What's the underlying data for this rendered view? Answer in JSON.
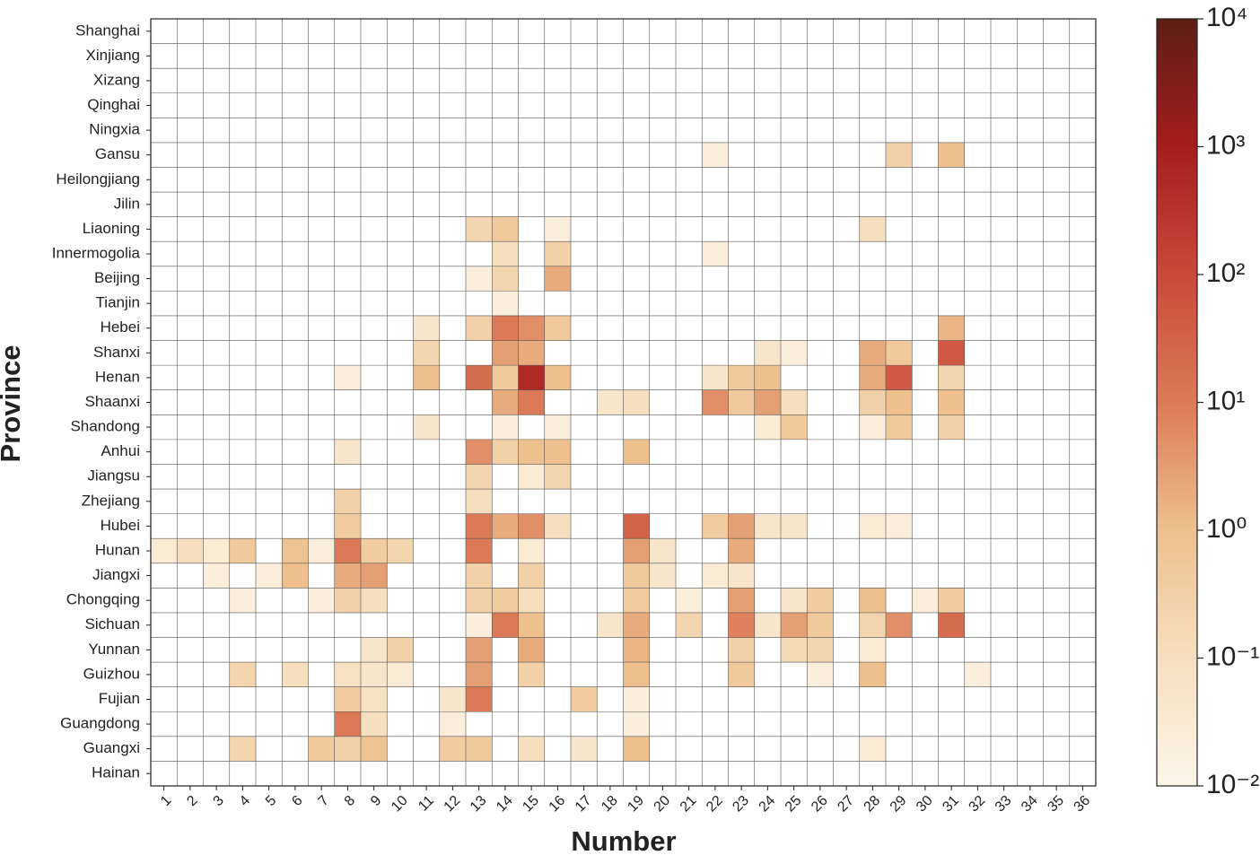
{
  "chart_data": {
    "type": "heatmap",
    "x_label": "Number",
    "y_label": "Province",
    "x": [
      1,
      2,
      3,
      4,
      5,
      6,
      7,
      8,
      9,
      10,
      11,
      12,
      13,
      14,
      15,
      16,
      17,
      18,
      19,
      20,
      21,
      22,
      23,
      24,
      25,
      26,
      27,
      28,
      29,
      30,
      31,
      32,
      33,
      34,
      35,
      36
    ],
    "y": [
      "Shanghai",
      "Xinjiang",
      "Xizang",
      "Qinghai",
      "Ningxia",
      "Gansu",
      "Heilongjiang",
      "Jilin",
      "Liaoning",
      "Innermogolia",
      "Beijing",
      "Tianjin",
      "Hebei",
      "Shanxi",
      "Henan",
      "Shaanxi",
      "Shandong",
      "Anhui",
      "Jiangsu",
      "Zhejiang",
      "Hubei",
      "Hunan",
      "Jiangxi",
      "Chongqing",
      "Sichuan",
      "Yunnan",
      "Guizhou",
      "Fujian",
      "Guangdong",
      "Guangxi",
      "Hainan"
    ],
    "values": [
      [
        null,
        null,
        null,
        null,
        null,
        null,
        null,
        null,
        null,
        null,
        null,
        null,
        null,
        null,
        null,
        null,
        null,
        null,
        null,
        null,
        null,
        null,
        null,
        null,
        null,
        null,
        null,
        null,
        null,
        null,
        null,
        null,
        null,
        null,
        null,
        null
      ],
      [
        null,
        null,
        null,
        null,
        null,
        null,
        null,
        null,
        null,
        null,
        null,
        null,
        null,
        null,
        null,
        null,
        null,
        null,
        null,
        null,
        null,
        null,
        null,
        null,
        null,
        null,
        null,
        null,
        null,
        null,
        null,
        null,
        null,
        null,
        null,
        null
      ],
      [
        null,
        null,
        null,
        null,
        null,
        null,
        null,
        null,
        null,
        null,
        null,
        null,
        null,
        null,
        null,
        null,
        null,
        null,
        null,
        null,
        null,
        null,
        null,
        null,
        null,
        null,
        null,
        null,
        null,
        null,
        null,
        null,
        null,
        null,
        null,
        null
      ],
      [
        null,
        null,
        null,
        null,
        null,
        null,
        null,
        null,
        null,
        null,
        null,
        null,
        null,
        null,
        null,
        null,
        null,
        null,
        null,
        null,
        null,
        null,
        null,
        null,
        null,
        null,
        null,
        null,
        null,
        null,
        null,
        null,
        null,
        null,
        null,
        null
      ],
      [
        null,
        null,
        null,
        null,
        null,
        null,
        null,
        null,
        null,
        null,
        null,
        null,
        null,
        null,
        null,
        null,
        null,
        null,
        null,
        null,
        null,
        null,
        null,
        null,
        null,
        null,
        null,
        null,
        null,
        null,
        null,
        null,
        null,
        null,
        null,
        null
      ],
      [
        null,
        null,
        null,
        null,
        null,
        null,
        null,
        null,
        null,
        null,
        null,
        null,
        null,
        null,
        null,
        null,
        null,
        null,
        null,
        null,
        null,
        0.02,
        null,
        null,
        null,
        null,
        null,
        null,
        0.3,
        null,
        1,
        null,
        null,
        null,
        null,
        null
      ],
      [
        null,
        null,
        null,
        null,
        null,
        null,
        null,
        null,
        null,
        null,
        null,
        null,
        null,
        null,
        null,
        null,
        null,
        null,
        null,
        null,
        null,
        null,
        null,
        null,
        null,
        null,
        null,
        null,
        null,
        null,
        null,
        null,
        null,
        null,
        null,
        null
      ],
      [
        null,
        null,
        null,
        null,
        null,
        null,
        null,
        null,
        null,
        null,
        null,
        null,
        null,
        null,
        null,
        null,
        null,
        null,
        null,
        null,
        null,
        null,
        null,
        null,
        null,
        null,
        null,
        null,
        null,
        null,
        null,
        null,
        null,
        null,
        null,
        null
      ],
      [
        null,
        null,
        null,
        null,
        null,
        null,
        null,
        null,
        null,
        null,
        null,
        null,
        0.2,
        0.5,
        null,
        0.02,
        null,
        null,
        null,
        null,
        null,
        null,
        null,
        null,
        null,
        null,
        null,
        0.1,
        null,
        null,
        null,
        null,
        null,
        null,
        null,
        null
      ],
      [
        null,
        null,
        null,
        null,
        null,
        null,
        null,
        null,
        null,
        null,
        null,
        null,
        null,
        0.1,
        null,
        0.3,
        null,
        null,
        null,
        null,
        null,
        0.02,
        null,
        null,
        null,
        null,
        null,
        null,
        null,
        null,
        null,
        null,
        null,
        null,
        null,
        null
      ],
      [
        null,
        null,
        null,
        null,
        null,
        null,
        null,
        null,
        null,
        null,
        null,
        null,
        0.02,
        0.2,
        null,
        2,
        null,
        null,
        null,
        null,
        null,
        null,
        null,
        null,
        null,
        null,
        null,
        null,
        null,
        null,
        null,
        null,
        null,
        null,
        null,
        null
      ],
      [
        null,
        null,
        null,
        null,
        null,
        null,
        null,
        null,
        null,
        null,
        null,
        null,
        null,
        0.02,
        null,
        null,
        null,
        null,
        null,
        null,
        null,
        null,
        null,
        null,
        null,
        null,
        null,
        null,
        null,
        null,
        null,
        null,
        null,
        null,
        null,
        null
      ],
      [
        null,
        null,
        null,
        null,
        null,
        null,
        null,
        null,
        null,
        null,
        0.05,
        null,
        0.3,
        10,
        5,
        0.5,
        null,
        null,
        null,
        null,
        null,
        null,
        null,
        null,
        null,
        null,
        null,
        null,
        null,
        null,
        1.5,
        null,
        null,
        null,
        null,
        null
      ],
      [
        null,
        null,
        null,
        null,
        null,
        null,
        null,
        null,
        null,
        null,
        0.2,
        null,
        null,
        3,
        2,
        null,
        null,
        null,
        null,
        null,
        null,
        null,
        null,
        0.05,
        0.02,
        null,
        null,
        2,
        0.5,
        null,
        50,
        null,
        null,
        null,
        null,
        null
      ],
      [
        null,
        null,
        null,
        null,
        null,
        null,
        null,
        0.02,
        null,
        null,
        1,
        null,
        20,
        0.5,
        500,
        1,
        null,
        null,
        null,
        null,
        null,
        0.05,
        0.5,
        1,
        null,
        null,
        null,
        2,
        50,
        null,
        0.2,
        null,
        null,
        null,
        null,
        null
      ],
      [
        null,
        null,
        null,
        null,
        null,
        null,
        null,
        null,
        null,
        null,
        null,
        null,
        null,
        2,
        10,
        null,
        null,
        0.05,
        0.1,
        null,
        null,
        5,
        0.5,
        3,
        0.1,
        null,
        null,
        0.3,
        1,
        null,
        1,
        null,
        null,
        null,
        null,
        null
      ],
      [
        null,
        null,
        null,
        null,
        null,
        null,
        null,
        null,
        null,
        null,
        0.05,
        null,
        null,
        0.02,
        null,
        0.02,
        null,
        null,
        null,
        null,
        null,
        null,
        null,
        0.03,
        0.5,
        null,
        null,
        0.02,
        0.5,
        null,
        0.3,
        null,
        null,
        null,
        null,
        null
      ],
      [
        null,
        null,
        null,
        null,
        null,
        null,
        null,
        0.05,
        null,
        null,
        null,
        null,
        5,
        0.3,
        1,
        1,
        null,
        null,
        1,
        null,
        null,
        null,
        null,
        null,
        null,
        null,
        null,
        null,
        null,
        null,
        null,
        null,
        null,
        null,
        null,
        null
      ],
      [
        null,
        null,
        null,
        null,
        null,
        null,
        null,
        null,
        null,
        null,
        null,
        null,
        0.2,
        null,
        0.03,
        0.2,
        null,
        null,
        null,
        null,
        null,
        null,
        null,
        null,
        null,
        null,
        null,
        null,
        null,
        null,
        null,
        null,
        null,
        null,
        null,
        null
      ],
      [
        null,
        null,
        null,
        null,
        null,
        null,
        null,
        0.3,
        null,
        null,
        null,
        null,
        0.1,
        null,
        null,
        null,
        null,
        null,
        null,
        null,
        null,
        null,
        null,
        null,
        null,
        null,
        null,
        null,
        null,
        null,
        null,
        null,
        null,
        null,
        null,
        null
      ],
      [
        null,
        null,
        null,
        null,
        null,
        null,
        null,
        0.4,
        null,
        null,
        null,
        null,
        10,
        2,
        5,
        0.1,
        null,
        null,
        30,
        null,
        null,
        0.4,
        3,
        0.05,
        0.05,
        null,
        null,
        0.03,
        0.02,
        null,
        null,
        null,
        null,
        null,
        null,
        null
      ],
      [
        0.03,
        0.1,
        0.03,
        0.5,
        null,
        0.8,
        0.02,
        10,
        0.4,
        0.2,
        null,
        null,
        10,
        null,
        0.03,
        null,
        null,
        null,
        3,
        0.05,
        null,
        null,
        2,
        null,
        null,
        null,
        null,
        null,
        null,
        null,
        null,
        null,
        null,
        null,
        null,
        null
      ],
      [
        null,
        null,
        0.02,
        null,
        0.02,
        1,
        null,
        2,
        3,
        null,
        null,
        null,
        0.3,
        null,
        0.3,
        null,
        null,
        null,
        0.5,
        0.05,
        null,
        0.03,
        0.05,
        null,
        null,
        null,
        null,
        null,
        null,
        null,
        null,
        null,
        null,
        null,
        null,
        null
      ],
      [
        null,
        null,
        null,
        0.02,
        null,
        null,
        0.02,
        0.3,
        0.1,
        null,
        null,
        null,
        0.3,
        0.4,
        0.1,
        null,
        null,
        null,
        0.4,
        null,
        0.02,
        null,
        3,
        null,
        0.05,
        0.4,
        null,
        1,
        null,
        0.02,
        0.4,
        null,
        null,
        null,
        null,
        null
      ],
      [
        null,
        null,
        null,
        null,
        null,
        null,
        null,
        null,
        null,
        null,
        null,
        null,
        0.02,
        10,
        1,
        null,
        null,
        0.05,
        2,
        null,
        0.2,
        null,
        8,
        0.05,
        3,
        0.5,
        null,
        0.2,
        5,
        null,
        20,
        null,
        null,
        null,
        null,
        null
      ],
      [
        null,
        null,
        null,
        null,
        null,
        null,
        null,
        null,
        0.05,
        0.3,
        null,
        null,
        3,
        null,
        2,
        null,
        null,
        null,
        1.5,
        null,
        null,
        null,
        0.3,
        null,
        0.15,
        0.2,
        null,
        0.03,
        null,
        null,
        null,
        null,
        null,
        null,
        null,
        null
      ],
      [
        null,
        null,
        null,
        0.2,
        null,
        0.1,
        null,
        0.08,
        0.05,
        0.03,
        null,
        null,
        3,
        null,
        0.3,
        null,
        null,
        null,
        1,
        null,
        null,
        null,
        0.5,
        null,
        null,
        0.02,
        null,
        1,
        null,
        null,
        null,
        0.02,
        null,
        null,
        null,
        null
      ],
      [
        null,
        null,
        null,
        null,
        null,
        null,
        null,
        0.4,
        0.08,
        null,
        null,
        0.05,
        10,
        null,
        null,
        null,
        0.4,
        null,
        0.02,
        null,
        null,
        null,
        null,
        null,
        null,
        null,
        null,
        null,
        null,
        null,
        null,
        null,
        null,
        null,
        null,
        null
      ],
      [
        null,
        null,
        null,
        null,
        null,
        null,
        null,
        10,
        0.1,
        null,
        null,
        0.02,
        null,
        null,
        null,
        null,
        null,
        null,
        0.02,
        null,
        null,
        null,
        null,
        null,
        null,
        null,
        null,
        null,
        null,
        null,
        null,
        null,
        null,
        null,
        null,
        null
      ],
      [
        null,
        null,
        null,
        0.2,
        null,
        null,
        0.5,
        0.3,
        0.8,
        null,
        null,
        0.4,
        0.5,
        null,
        0.1,
        null,
        0.05,
        null,
        1,
        null,
        null,
        null,
        null,
        null,
        null,
        null,
        null,
        0.03,
        null,
        null,
        null,
        null,
        null,
        null,
        null,
        null
      ],
      [
        null,
        null,
        null,
        null,
        null,
        null,
        null,
        null,
        null,
        null,
        null,
        null,
        null,
        null,
        null,
        null,
        null,
        null,
        null,
        null,
        null,
        null,
        null,
        null,
        null,
        null,
        null,
        null,
        null,
        null,
        null,
        null,
        null,
        null,
        null,
        null
      ]
    ],
    "color_scale": "log",
    "clim": [
      0.01,
      10000
    ],
    "cticks": [
      {
        "value": 0.01,
        "label": "10⁻²"
      },
      {
        "value": 0.1,
        "label": "10⁻¹"
      },
      {
        "value": 1,
        "label": "10⁰"
      },
      {
        "value": 10,
        "label": "10¹"
      },
      {
        "value": 100,
        "label": "10²"
      },
      {
        "value": 1000,
        "label": "10³"
      },
      {
        "value": 10000,
        "label": "10⁴"
      }
    ],
    "colormap": [
      "#fdf5ea",
      "#f6dfbf",
      "#edc08e",
      "#dc7a57",
      "#c84a3a",
      "#a51d1d",
      "#5c1e16"
    ],
    "grid": true
  }
}
